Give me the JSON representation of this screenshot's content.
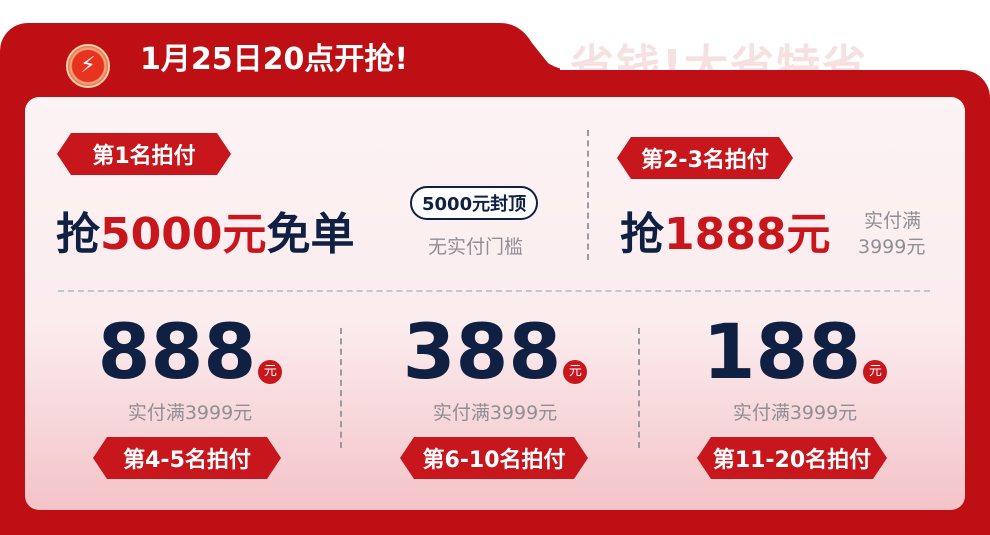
{
  "header": {
    "title": "1月25日20点开抢!",
    "watermark": "省钱!大省特省",
    "logo_icon": "lightning-clock-icon"
  },
  "top": [
    {
      "badge": "第1名拍付",
      "prefix": "抢",
      "amount": "5000元",
      "suffix": "免单",
      "pill": "5000元封顶",
      "note": "无实付门槛"
    },
    {
      "badge": "第2-3名拍付",
      "prefix": "抢",
      "amount": "1888元",
      "note1": "实付满",
      "note2": "3999元"
    }
  ],
  "bottom": [
    {
      "amount": "888",
      "unit": "元",
      "condition": "实付满3999元",
      "badge": "第4-5名拍付"
    },
    {
      "amount": "388",
      "unit": "元",
      "condition": "实付满3999元",
      "badge": "第6-10名拍付"
    },
    {
      "amount": "188",
      "unit": "元",
      "condition": "实付满3999元",
      "badge": "第11-20名拍付"
    }
  ],
  "colors": {
    "red": "#be1014",
    "navy": "#0f2043"
  }
}
